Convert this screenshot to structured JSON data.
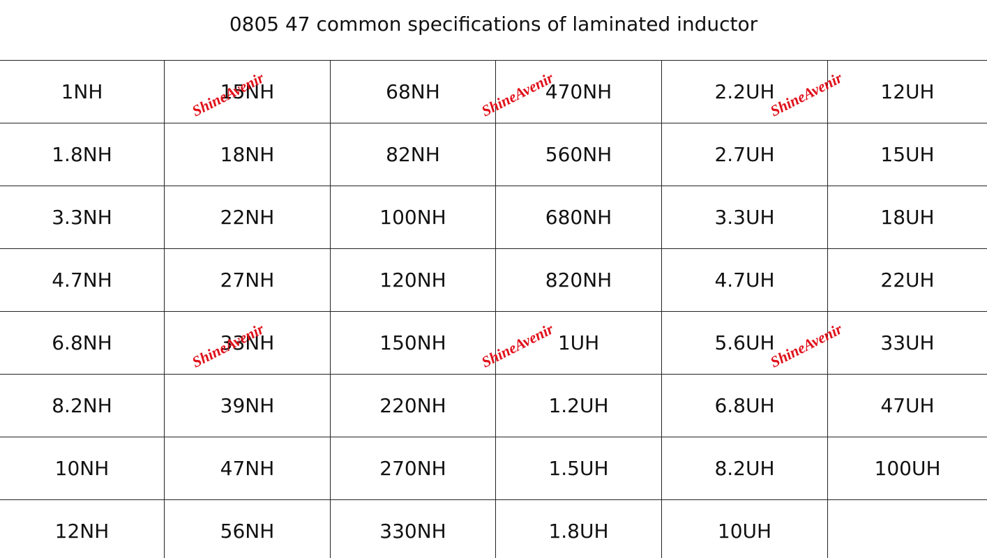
{
  "title": "0805 47 common specifications of laminated inductor",
  "watermark": "ShineAvenir",
  "table": {
    "rows": [
      [
        "1NH",
        "15NH",
        "68NH",
        "470NH",
        "2.2UH",
        "12UH"
      ],
      [
        "1.8NH",
        "18NH",
        "82NH",
        "560NH",
        "2.7UH",
        "15UH"
      ],
      [
        "3.3NH",
        "22NH",
        "100NH",
        "680NH",
        "3.3UH",
        "18UH"
      ],
      [
        "4.7NH",
        "27NH",
        "120NH",
        "820NH",
        "4.7UH",
        "22UH"
      ],
      [
        "6.8NH",
        "33NH",
        "150NH",
        "1UH",
        "5.6UH",
        "33UH"
      ],
      [
        "8.2NH",
        "39NH",
        "220NH",
        "1.2UH",
        "6.8UH",
        "47UH"
      ],
      [
        "10NH",
        "47NH",
        "270NH",
        "1.5UH",
        "8.2UH",
        "100UH"
      ],
      [
        "12NH",
        "56NH",
        "330NH",
        "1.8UH",
        "10UH"
      ]
    ]
  }
}
